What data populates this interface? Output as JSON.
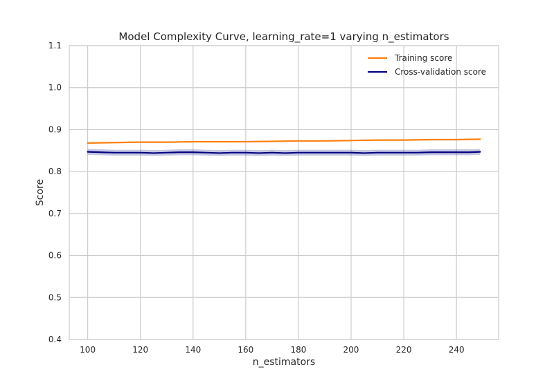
{
  "chart_data": {
    "type": "line",
    "title": "Model Complexity Curve, learning_rate=1 varying n_estimators",
    "xlabel": "n_estimators",
    "ylabel": "Score",
    "xlim": [
      93,
      256
    ],
    "ylim": [
      0.4,
      1.1
    ],
    "xticks": [
      100,
      120,
      140,
      160,
      180,
      200,
      220,
      240
    ],
    "xtick_labels": [
      "100",
      "120",
      "140",
      "160",
      "180",
      "200",
      "220",
      "240"
    ],
    "yticks": [
      0.4,
      0.5,
      0.6,
      0.7,
      0.8,
      0.9,
      1.0,
      1.1
    ],
    "ytick_labels": [
      "0.4",
      "0.5",
      "0.6",
      "0.7",
      "0.8",
      "0.9",
      "1.0",
      "1.1"
    ],
    "grid": true,
    "legend_position": "top-right",
    "series": [
      {
        "name": "Training score",
        "color": "#ff7f0e",
        "x": [
          100,
          110,
          120,
          130,
          140,
          150,
          160,
          170,
          180,
          190,
          200,
          210,
          220,
          230,
          240,
          249
        ],
        "y": [
          0.868,
          0.869,
          0.87,
          0.87,
          0.871,
          0.871,
          0.871,
          0.872,
          0.873,
          0.873,
          0.874,
          0.875,
          0.875,
          0.876,
          0.876,
          0.877
        ],
        "band": null
      },
      {
        "name": "Cross-validation score",
        "color": "#000080",
        "band_color": "#000080",
        "x": [
          100,
          105,
          110,
          115,
          120,
          125,
          130,
          135,
          140,
          145,
          150,
          155,
          160,
          165,
          170,
          175,
          180,
          185,
          190,
          195,
          200,
          205,
          210,
          215,
          220,
          225,
          230,
          235,
          240,
          245,
          249
        ],
        "y": [
          0.847,
          0.846,
          0.845,
          0.845,
          0.845,
          0.844,
          0.845,
          0.846,
          0.846,
          0.845,
          0.844,
          0.845,
          0.845,
          0.844,
          0.845,
          0.844,
          0.845,
          0.845,
          0.845,
          0.845,
          0.845,
          0.844,
          0.845,
          0.845,
          0.845,
          0.845,
          0.846,
          0.846,
          0.846,
          0.846,
          0.847
        ],
        "band_half_width": 0.007
      }
    ]
  }
}
